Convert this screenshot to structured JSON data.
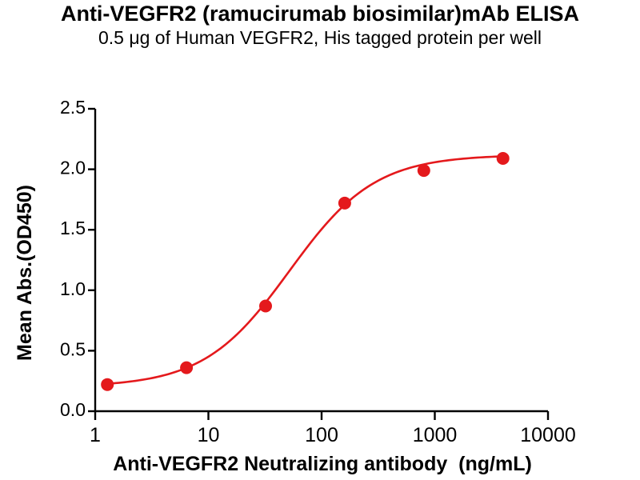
{
  "header": {
    "title": "Anti-VEGFR2 (ramucirumab biosimilar)mAb ELISA",
    "subtitle": "0.5 μg of Human VEGFR2, His tagged protein per well"
  },
  "chart_data": {
    "type": "scatter",
    "title": "Anti-VEGFR2 (ramucirumab biosimilar)mAb ELISA",
    "subtitle": "0.5 μg of Human VEGFR2, His tagged protein per well",
    "xlabel": "Anti-VEGFR2 Neutralizing antibody  (ng/mL)",
    "ylabel": "Mean Abs.(OD450)",
    "x_scale": "log10",
    "xlim": [
      1,
      10000
    ],
    "ylim": [
      0,
      2.5
    ],
    "x_ticks": [
      1,
      10,
      100,
      1000,
      10000
    ],
    "x_tick_labels": [
      "1",
      "10",
      "100",
      "1000",
      "10000"
    ],
    "y_ticks": [
      0,
      0.5,
      1.0,
      1.5,
      2.0,
      2.5
    ],
    "y_tick_labels": [
      "0.0",
      "0.5",
      "1.0",
      "1.5",
      "2.0",
      "2.5"
    ],
    "grid": false,
    "legend": "none",
    "series": [
      {
        "marker": "circle",
        "marker_radius": 8,
        "color": "#e4191c",
        "x": [
          1.28,
          6.4,
          32,
          160,
          800,
          4000
        ],
        "y": [
          0.22,
          0.36,
          0.87,
          1.72,
          1.99,
          2.09
        ],
        "fit_4pl": {
          "bottom": 0.2,
          "top": 2.12,
          "ec50": 52,
          "hill": 1.15
        }
      }
    ]
  },
  "colors": {
    "curve": "#e4191c",
    "axis": "#000000",
    "text": "#000000",
    "background": "#ffffff"
  }
}
